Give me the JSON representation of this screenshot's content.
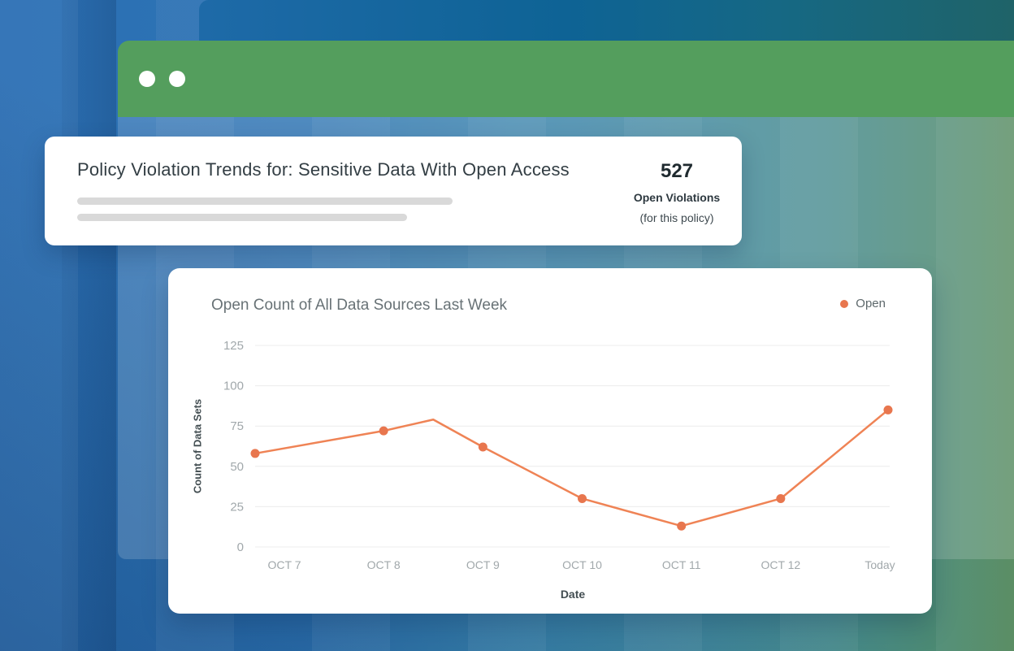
{
  "window": {
    "controls": [
      "window-control",
      "window-control"
    ]
  },
  "summary_card": {
    "title": "Policy Violation Trends for: Sensitive Data With Open Access",
    "count": "527",
    "count_label": "Open Violations",
    "count_sublabel": "(for this policy)"
  },
  "chart_data": {
    "type": "line",
    "title": "Open Count of All Data Sources Last Week",
    "xlabel": "Date",
    "ylabel": "Count of Data Sets",
    "categories": [
      "OCT 7",
      "OCT 8",
      "OCT 9",
      "OCT 10",
      "OCT 11",
      "OCT 12",
      "Today"
    ],
    "series": [
      {
        "name": "Open",
        "color": "#E8764E",
        "line_color": "#EF8355",
        "values": [
          58,
          72,
          62,
          30,
          13,
          30,
          85
        ]
      }
    ],
    "extra_vertex": {
      "after_index": 1,
      "value": 79,
      "marker": false
    },
    "yticks": [
      0,
      25,
      50,
      75,
      100,
      125
    ],
    "ylim": [
      0,
      125
    ],
    "grid": "horizontal",
    "legend_position": "top-right"
  },
  "colors": {
    "accent_orange": "#E8764E",
    "header_green": "#549E5D",
    "card_bg": "#FFFFFF",
    "placeholder_gray": "#D9D9D9"
  }
}
